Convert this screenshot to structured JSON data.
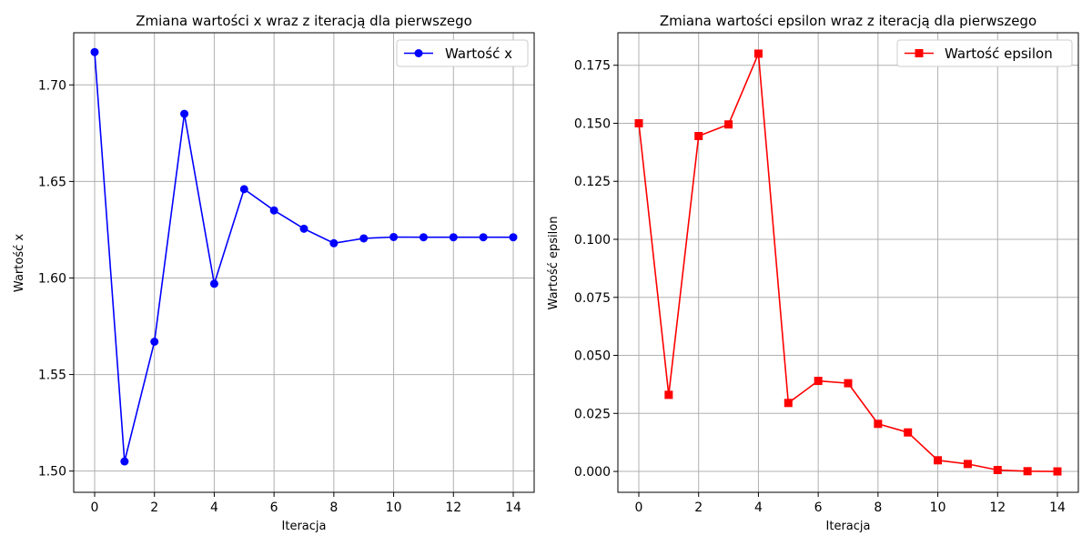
{
  "chart_data": [
    {
      "type": "line",
      "title": "Zmiana wartości x wraz z iteracją dla pierwszego",
      "xlabel": "Iteracja",
      "ylabel": "Wartość x",
      "xlim": [
        -0.7,
        14.7
      ],
      "ylim": [
        1.489,
        1.727
      ],
      "xticks": [
        0,
        2,
        4,
        6,
        8,
        10,
        12,
        14
      ],
      "yticks": [
        1.5,
        1.55,
        1.6,
        1.65,
        1.7
      ],
      "ytick_labels": [
        "1.50",
        "1.55",
        "1.60",
        "1.65",
        "1.70"
      ],
      "grid": true,
      "legend_position": "top-right",
      "color": "#0000ff",
      "marker": "circle",
      "series": [
        {
          "name": "Wartość x",
          "x": [
            0,
            1,
            2,
            3,
            4,
            5,
            6,
            7,
            8,
            9,
            10,
            11,
            12,
            13,
            14
          ],
          "values": [
            1.717,
            1.505,
            1.567,
            1.685,
            1.597,
            1.646,
            1.635,
            1.6255,
            1.618,
            1.6205,
            1.6212,
            1.6211,
            1.6211,
            1.6211,
            1.6211
          ]
        }
      ]
    },
    {
      "type": "line",
      "title": "Zmiana wartości epsilon wraz z iteracją dla pierwszego",
      "xlabel": "Iteracja",
      "ylabel": "Wartość epsilon",
      "xlim": [
        -0.7,
        14.7
      ],
      "ylim": [
        -0.009,
        0.189
      ],
      "xticks": [
        0,
        2,
        4,
        6,
        8,
        10,
        12,
        14
      ],
      "yticks": [
        0.0,
        0.025,
        0.05,
        0.075,
        0.1,
        0.125,
        0.15,
        0.175
      ],
      "ytick_labels": [
        "0.000",
        "0.025",
        "0.050",
        "0.075",
        "0.100",
        "0.125",
        "0.150",
        "0.175"
      ],
      "grid": true,
      "legend_position": "top-right",
      "color": "#ff0000",
      "marker": "square",
      "series": [
        {
          "name": "Wartość epsilon",
          "x": [
            0,
            1,
            2,
            3,
            4,
            5,
            6,
            7,
            8,
            9,
            10,
            11,
            12,
            13,
            14
          ],
          "values": [
            0.15,
            0.033,
            0.1445,
            0.1495,
            0.18,
            0.0295,
            0.039,
            0.038,
            0.0205,
            0.0168,
            0.0048,
            0.0032,
            0.0006,
            0.0001,
            0.0
          ]
        }
      ]
    }
  ]
}
